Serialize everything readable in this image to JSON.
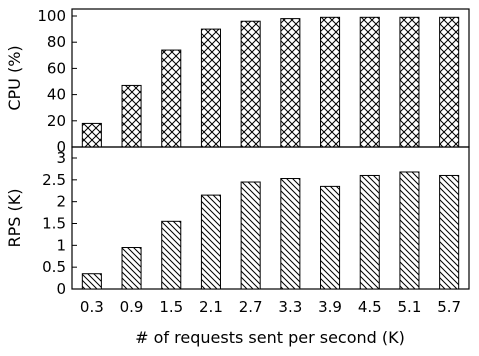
{
  "chart_data": [
    {
      "type": "bar",
      "categories": [
        "0.3",
        "0.9",
        "1.5",
        "2.1",
        "2.7",
        "3.3",
        "3.9",
        "4.5",
        "5.1",
        "5.7"
      ],
      "values": [
        18,
        47,
        74,
        90,
        96,
        98,
        99,
        99,
        99,
        99
      ],
      "ylabel": "CPU (%)",
      "ylim": [
        0,
        100
      ],
      "yticks": [
        "0",
        "20",
        "40",
        "60",
        "80",
        "100"
      ],
      "pattern": "crosshatch",
      "bar_fill": "#ffffff",
      "bar_stroke": "#000000"
    },
    {
      "type": "bar",
      "categories": [
        "0.3",
        "0.9",
        "1.5",
        "2.1",
        "2.7",
        "3.3",
        "3.9",
        "4.5",
        "5.1",
        "5.7"
      ],
      "values": [
        0.35,
        0.95,
        1.55,
        2.15,
        2.45,
        2.53,
        2.35,
        2.6,
        2.68,
        2.6
      ],
      "ylabel": "RPS (K)",
      "xlabel": "# of requests sent per second (K)",
      "ylim": [
        0,
        3.2
      ],
      "yticks": [
        "0",
        "0.5",
        "1",
        "1.5",
        "2",
        "2.5",
        "3"
      ],
      "pattern": "diagonal",
      "bar_fill": "#ffffff",
      "bar_stroke": "#000000"
    }
  ]
}
